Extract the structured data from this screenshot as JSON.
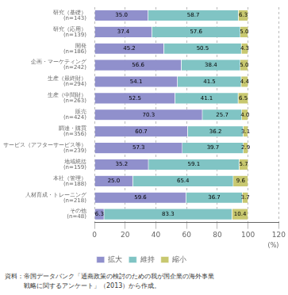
{
  "chart_data": {
    "type": "bar",
    "orientation": "horizontal",
    "stacked": true,
    "categories": [
      "研究（基礎）\n(n=143)",
      "研究（応用）\n(n=139)",
      "開発\n(n=186)",
      "企画・マーケティング\n(n=242)",
      "生産（最終財）\n(n=294)",
      "生産（中間財）\n(n=263)",
      "販売\n(n=424)",
      "調達・購買\n(n=356)",
      "サービス（アフターサービス等）\n(n=239)",
      "地域統括\n(n=159)",
      "本社（管理）\n(n=188)",
      "人材育成・トレーニング\n(n=218)",
      "その他\n(n=48)"
    ],
    "series": [
      {
        "name": "拡大",
        "color": "#9090cc",
        "values": [
          35.0,
          37.4,
          45.2,
          56.6,
          54.1,
          52.5,
          70.3,
          60.7,
          57.3,
          35.2,
          25.0,
          59.6,
          6.3
        ],
        "value_labels": [
          "35.0",
          "37.4",
          "45.2",
          "56.6",
          "54.1",
          "52.5",
          "70.3",
          "60.7",
          "57.3",
          "35.2",
          "25.0",
          "59.6",
          "6.3"
        ]
      },
      {
        "name": "維持",
        "color": "#80c4c4",
        "values": [
          58.7,
          57.6,
          50.5,
          38.4,
          41.5,
          41.1,
          25.7,
          36.2,
          39.7,
          59.1,
          65.4,
          36.7,
          83.3
        ],
        "value_labels": [
          "58.7",
          "57.6",
          "50.5",
          "38.4",
          "41.5",
          "41.1",
          "25.7",
          "36.2",
          "39.7",
          "59.1",
          "65.4",
          "36.7",
          "83.3"
        ]
      },
      {
        "name": "縮小",
        "color": "#c8c870",
        "values": [
          6.3,
          5.0,
          4.3,
          5.0,
          4.4,
          6.5,
          4.0,
          3.1,
          2.9,
          5.7,
          9.6,
          3.7,
          10.4
        ],
        "value_labels": [
          "6.3",
          "5.0",
          "4.3",
          "5.0",
          "4.4",
          "6.5",
          "4.0",
          "3.1",
          "2.9",
          "5.7",
          "9.6",
          "3.7",
          "10.4"
        ]
      }
    ],
    "xlabel": "(%)",
    "xlim": [
      0,
      120
    ],
    "xticks": [
      0,
      20,
      40,
      60,
      80,
      100,
      120
    ],
    "grid": true,
    "data_labels": true,
    "legend": "bottom",
    "annotations": [
      "資料：帝国データバンク「通商政策の検討のための我が国企業の海外事業",
      "　　　戦略に関するアンケート」（2013）から作成。"
    ]
  }
}
